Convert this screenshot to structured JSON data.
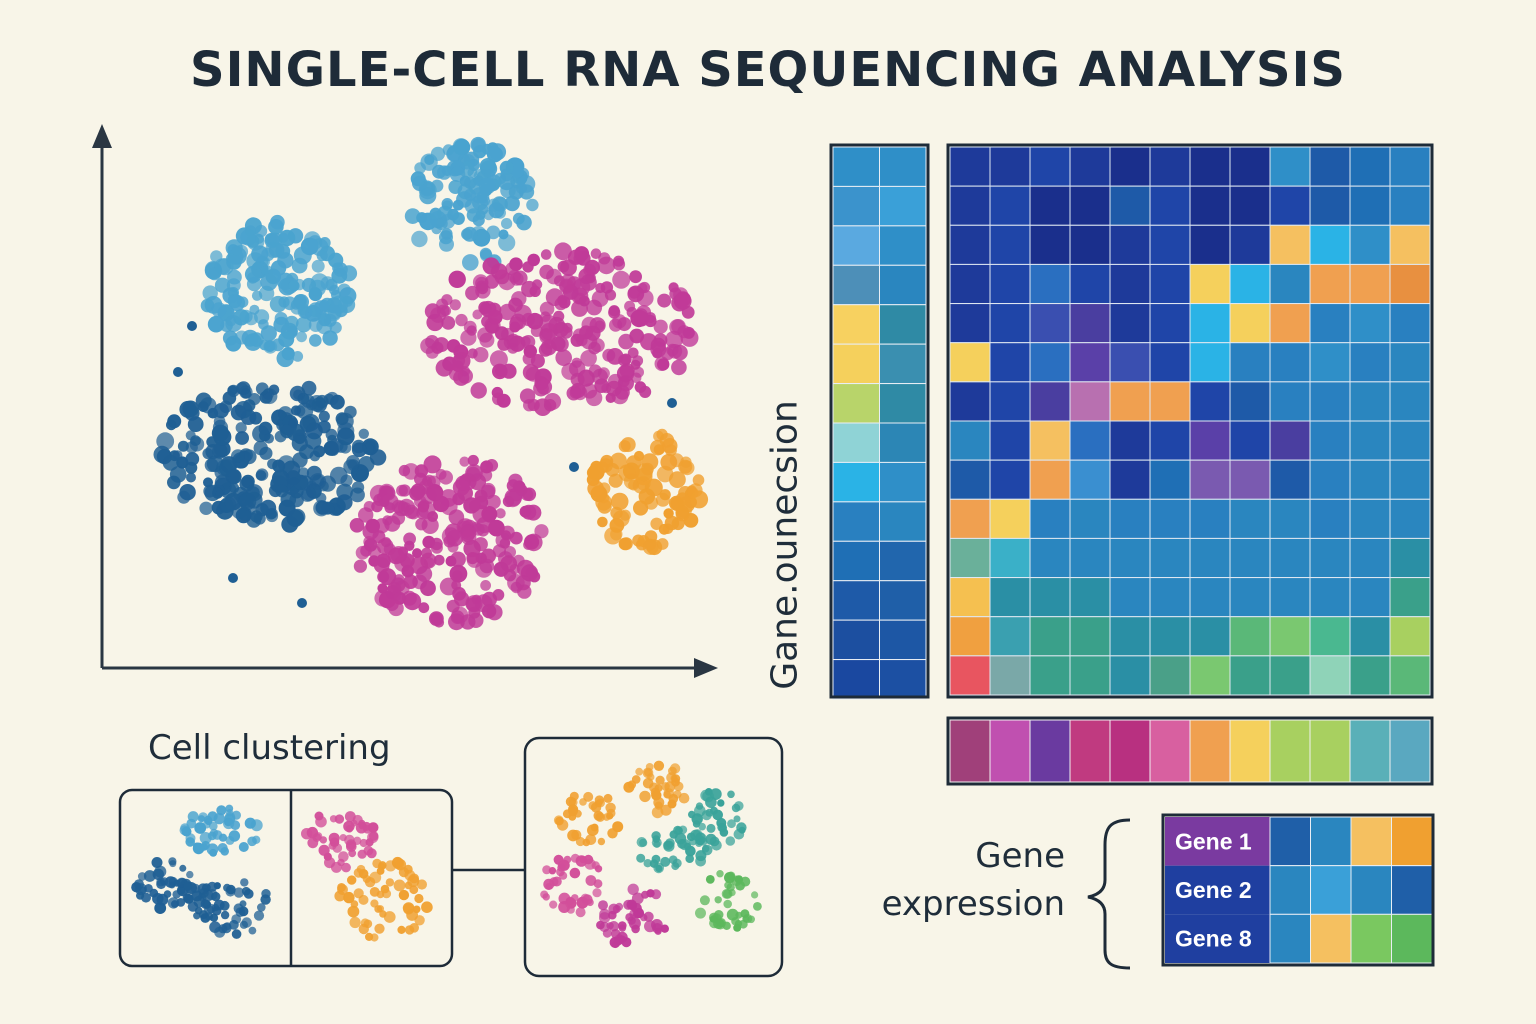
{
  "title": "SINGLE-CELL RNA SEQUENCING ANALYSIS",
  "labels": {
    "vertical": "Gane.ounecsion",
    "cell_clustering": "Cell clustering",
    "gene_expression": "Gene expression"
  },
  "gene_rows": [
    "Gene 1",
    "Gene 2",
    "Gene 8"
  ],
  "colors": {
    "light_blue": "#4aa3cf",
    "dark_blue": "#1f5f94",
    "magenta": "#c03a98",
    "orange": "#f0a030",
    "pink": "#d24f9a",
    "teal": "#3aa39a",
    "green": "#5cb85c",
    "axis": "#2a3642"
  },
  "clusters": [
    {
      "color": "light_blue",
      "cx": 470,
      "cy": 205,
      "rx": 65,
      "ry": 62,
      "n": 120
    },
    {
      "color": "light_blue",
      "cx": 280,
      "cy": 290,
      "rx": 75,
      "ry": 70,
      "n": 160
    },
    {
      "color": "dark_blue",
      "cx": 270,
      "cy": 455,
      "rx": 110,
      "ry": 72,
      "n": 230
    },
    {
      "color": "magenta",
      "cx": 560,
      "cy": 330,
      "rx": 135,
      "ry": 80,
      "n": 260
    },
    {
      "color": "magenta",
      "cx": 450,
      "cy": 540,
      "rx": 95,
      "ry": 85,
      "n": 220
    },
    {
      "color": "orange",
      "cx": 645,
      "cy": 490,
      "rx": 55,
      "ry": 60,
      "n": 90
    }
  ],
  "left_strip": [
    [
      "#2f8fc8",
      "#2f8fc8"
    ],
    [
      "#3b93cc",
      "#3aa0d8"
    ],
    [
      "#5aa9e0",
      "#2f8fc8"
    ],
    [
      "#4d8fb8",
      "#2a86bf"
    ],
    [
      "#f7d160",
      "#2f8aa5"
    ],
    [
      "#f5d05c",
      "#3a8fb0"
    ],
    [
      "#b8d46a",
      "#2f8aa5"
    ],
    [
      "#8fd3d6",
      "#2c86b5"
    ],
    [
      "#2ab3e6",
      "#2f8fc8"
    ],
    [
      "#2980c0",
      "#2a86bf"
    ],
    [
      "#1f6fb5",
      "#2166ad"
    ],
    [
      "#1e5aa8",
      "#1f5fa8"
    ],
    [
      "#1c4fa0",
      "#1d57a5"
    ],
    [
      "#1a48a0",
      "#1c50a3"
    ]
  ],
  "heatmap": [
    [
      "#1e3a9a",
      "#1e3a9a",
      "#1f45a8",
      "#1e3a9a",
      "#1a2f8c",
      "#1e3a9a",
      "#1a2f8c",
      "#1a2f8c",
      "#2f8fc8",
      "#1e5aa8",
      "#1f6fb5",
      "#2980c0"
    ],
    [
      "#1e3a9a",
      "#1f45a8",
      "#1a2f8c",
      "#1a2f8c",
      "#1e5aa8",
      "#1f45a8",
      "#1a2f8c",
      "#1a2f8c",
      "#1f45a8",
      "#1e5aa8",
      "#1f6fb5",
      "#2980c0"
    ],
    [
      "#1e3a9a",
      "#1f45a8",
      "#1a2f8c",
      "#1a2f8c",
      "#1e3a9a",
      "#1f45a8",
      "#1a2f8c",
      "#1e3a9a",
      "#f5c060",
      "#2ab3e6",
      "#2f8fc8",
      "#f5c060"
    ],
    [
      "#1e3a9a",
      "#1f45a8",
      "#2a6fc0",
      "#1f45a8",
      "#1e3a9a",
      "#1f45a8",
      "#f5d05c",
      "#2ab3e6",
      "#2a86bf",
      "#f0a050",
      "#f0a050",
      "#e89040"
    ],
    [
      "#1e3a9a",
      "#1f45a8",
      "#3a4fb0",
      "#4a3ea0",
      "#1e3a9a",
      "#1f45a8",
      "#2ab3e6",
      "#f5d05c",
      "#f0a050",
      "#2980c0",
      "#2f8fc8",
      "#2980c0"
    ],
    [
      "#f5d05c",
      "#1f45a8",
      "#2a6fc0",
      "#5a40a8",
      "#3a4fb0",
      "#1f45a8",
      "#2ab3e6",
      "#2980c0",
      "#2980c0",
      "#2f8fc8",
      "#2980c0",
      "#2a86bf"
    ],
    [
      "#1e3a9a",
      "#1f45a8",
      "#4a3ea0",
      "#b870b0",
      "#f0a050",
      "#f0a050",
      "#1f45a8",
      "#1e5aa8",
      "#2980c0",
      "#2980c0",
      "#2a86bf",
      "#2a86bf"
    ],
    [
      "#2a86bf",
      "#1f45a8",
      "#f5c060",
      "#2a6fc0",
      "#1e3a9a",
      "#1f45a8",
      "#5a40a8",
      "#1f45a8",
      "#4a3ea0",
      "#2980c0",
      "#2a86bf",
      "#2a86bf"
    ],
    [
      "#1e5aa8",
      "#1f45a8",
      "#f0a050",
      "#3a8fd0",
      "#1e3a9a",
      "#1f6fb5",
      "#7a5ab0",
      "#7a5ab0",
      "#1e5aa8",
      "#2980c0",
      "#2a86bf",
      "#2a86bf"
    ],
    [
      "#f0a050",
      "#f5d05c",
      "#2980c0",
      "#2a86bf",
      "#2980c0",
      "#2980c0",
      "#2980c0",
      "#2a86bf",
      "#2a86bf",
      "#2980c0",
      "#2a86bf",
      "#2a86bf"
    ],
    [
      "#6ab09a",
      "#3ab0c8",
      "#2a86bf",
      "#2a86bf",
      "#2a86bf",
      "#2a86bf",
      "#2a86bf",
      "#2a86bf",
      "#2a86bf",
      "#2a86bf",
      "#2a86bf",
      "#2a8fa5"
    ],
    [
      "#f5c050",
      "#2a8fa5",
      "#2a8fa5",
      "#2a8fa5",
      "#2a86bf",
      "#2a86bf",
      "#2a86bf",
      "#2a86bf",
      "#2a86bf",
      "#2a86bf",
      "#2a86bf",
      "#3aa08a"
    ],
    [
      "#f0a040",
      "#3aa0b0",
      "#3aa08a",
      "#3aa08a",
      "#2a8fa5",
      "#2a8fa5",
      "#2a8fa5",
      "#5ab878",
      "#7ac870",
      "#4ab890",
      "#2a8fa5",
      "#a8d060"
    ],
    [
      "#e85560",
      "#7aa8a8",
      "#3aa08a",
      "#3aa08a",
      "#2a8fa5",
      "#4aa088",
      "#7ac870",
      "#3aa08a",
      "#3aa08a",
      "#8fd3b8",
      "#3aa08a",
      "#5ab878"
    ]
  ],
  "palette_bar": [
    "#a0407a",
    "#c050b0",
    "#6a3aa0",
    "#c03a80",
    "#b83080",
    "#d860a0",
    "#f0a050",
    "#f5d05c",
    "#a8d060",
    "#a8d060",
    "#5ab0b8",
    "#5aa8c0"
  ],
  "gene_table": [
    [
      "#1f5fa8",
      "#2a86bf",
      "#f5c060",
      "#f0a030"
    ],
    [
      "#2a86bf",
      "#3aa0d8",
      "#2a86bf",
      "#1f5fa8"
    ],
    [
      "#2a86bf",
      "#f5c060",
      "#7ac860",
      "#5cb85c"
    ]
  ],
  "gene_label_colors": [
    "#7a3aa0",
    "#1f3fa0",
    "#1f3fa0"
  ],
  "mini_clusters": [
    {
      "color": "light_blue",
      "cx": 222,
      "cy": 832,
      "rx": 38,
      "ry": 26,
      "n": 45
    },
    {
      "color": "dark_blue",
      "cx": 172,
      "cy": 885,
      "rx": 36,
      "ry": 26,
      "n": 45
    },
    {
      "color": "dark_blue",
      "cx": 232,
      "cy": 908,
      "rx": 40,
      "ry": 28,
      "n": 50
    },
    {
      "color": "pink",
      "cx": 342,
      "cy": 838,
      "rx": 36,
      "ry": 30,
      "n": 45
    },
    {
      "color": "orange",
      "cx": 383,
      "cy": 900,
      "rx": 45,
      "ry": 40,
      "n": 60
    },
    {
      "color": "orange",
      "cx": 588,
      "cy": 818,
      "rx": 32,
      "ry": 26,
      "n": 35
    },
    {
      "color": "orange",
      "cx": 660,
      "cy": 790,
      "rx": 32,
      "ry": 25,
      "n": 35
    },
    {
      "color": "teal",
      "cx": 718,
      "cy": 818,
      "rx": 30,
      "ry": 28,
      "n": 35
    },
    {
      "color": "teal",
      "cx": 672,
      "cy": 850,
      "rx": 40,
      "ry": 22,
      "n": 40
    },
    {
      "color": "pink",
      "cx": 574,
      "cy": 884,
      "rx": 32,
      "ry": 30,
      "n": 40
    },
    {
      "color": "magenta",
      "cx": 634,
      "cy": 918,
      "rx": 35,
      "ry": 32,
      "n": 45
    },
    {
      "color": "green",
      "cx": 726,
      "cy": 903,
      "rx": 32,
      "ry": 30,
      "n": 40
    }
  ]
}
